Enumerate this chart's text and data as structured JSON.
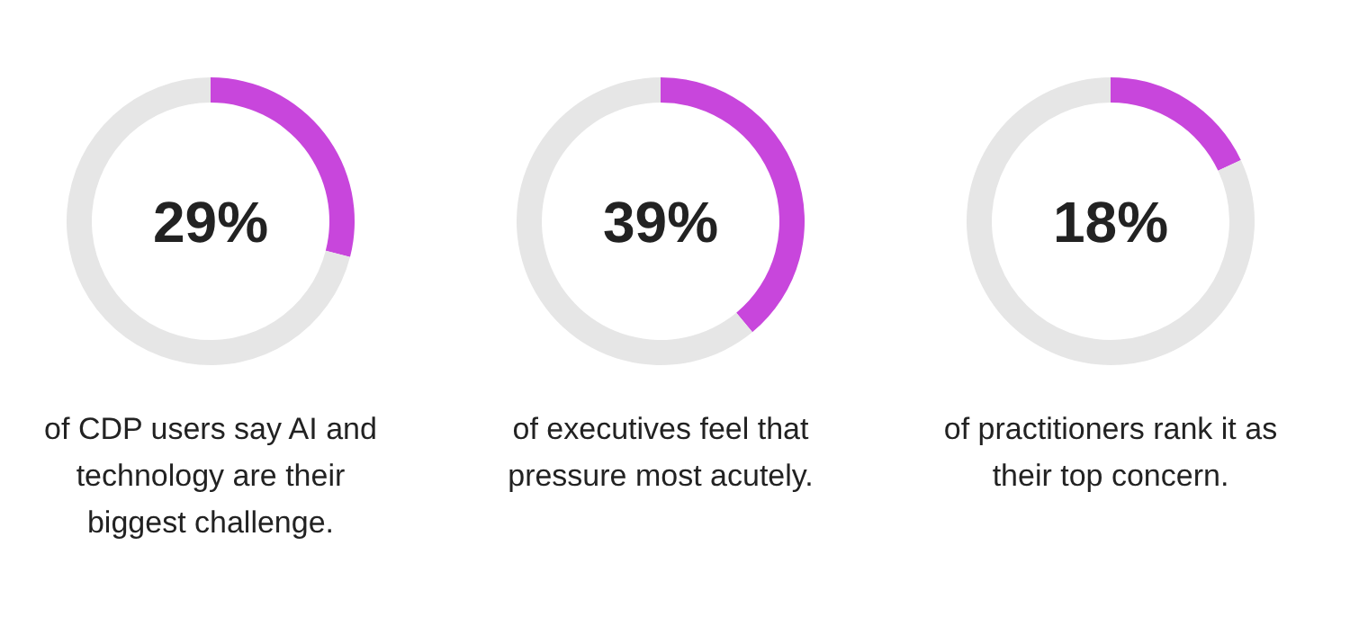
{
  "chart_data": [
    {
      "type": "donut",
      "title": "29%",
      "categories": [
        null,
        null
      ],
      "values": [
        29,
        71
      ],
      "colors": [
        "#c846dc",
        "#e6e6e6"
      ],
      "annotations": [
        "of CDP users say AI and technology are their biggest challenge."
      ]
    },
    {
      "type": "donut",
      "title": "39%",
      "categories": [
        null,
        null
      ],
      "values": [
        39,
        61
      ],
      "colors": [
        "#c846dc",
        "#e6e6e6"
      ],
      "annotations": [
        "of executives feel that pressure most acutely."
      ]
    },
    {
      "type": "donut",
      "title": "18%",
      "categories": [
        null,
        null
      ],
      "values": [
        18,
        82
      ],
      "colors": [
        "#c846dc",
        "#e6e6e6"
      ],
      "annotations": [
        "of practitioners rank it as their top concern."
      ]
    }
  ]
}
